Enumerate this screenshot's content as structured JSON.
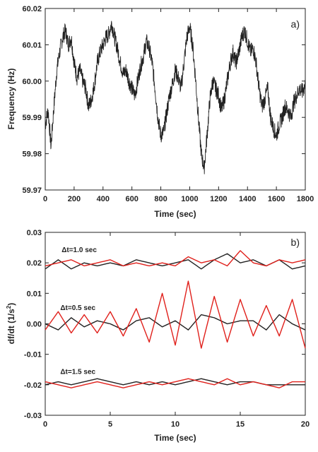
{
  "chart_data": [
    {
      "type": "line",
      "panel_label": "a)",
      "xlabel": "Time (sec)",
      "ylabel": "Frequency (Hz)",
      "xlim": [
        0,
        1800
      ],
      "ylim": [
        59.97,
        60.02
      ],
      "xticks": [
        "0",
        "200",
        "400",
        "600",
        "800",
        "1000",
        "1200",
        "1400",
        "1600",
        "1800"
      ],
      "xtick_values": [
        0,
        200,
        400,
        600,
        800,
        1000,
        1200,
        1400,
        1600,
        1800
      ],
      "yticks": [
        "59.97",
        "59.98",
        "59.99",
        "60.00",
        "60.01",
        "60.02"
      ],
      "ytick_values": [
        59.97,
        59.98,
        59.99,
        60.0,
        60.01,
        60.02
      ],
      "grid": false,
      "series": [
        {
          "color": "#222222",
          "x": [
            0,
            20,
            40,
            60,
            80,
            100,
            120,
            140,
            160,
            180,
            200,
            220,
            240,
            260,
            280,
            300,
            320,
            340,
            360,
            380,
            400,
            420,
            440,
            460,
            480,
            500,
            520,
            540,
            560,
            580,
            600,
            620,
            640,
            660,
            680,
            700,
            720,
            740,
            760,
            780,
            800,
            820,
            840,
            860,
            880,
            900,
            920,
            940,
            960,
            980,
            1000,
            1020,
            1040,
            1060,
            1080,
            1100,
            1120,
            1140,
            1160,
            1180,
            1200,
            1220,
            1240,
            1260,
            1280,
            1300,
            1320,
            1340,
            1360,
            1380,
            1400,
            1420,
            1440,
            1460,
            1480,
            1500,
            1520,
            1540,
            1560,
            1580,
            1600,
            1620,
            1640,
            1660,
            1680,
            1700,
            1720,
            1740,
            1760,
            1780,
            1800
          ],
          "y": [
            59.988,
            59.992,
            59.982,
            59.993,
            60.003,
            60.008,
            60.012,
            60.014,
            60.01,
            60.012,
            60.005,
            60.001,
            60.003,
            60.0,
            59.998,
            59.993,
            59.995,
            59.999,
            60.005,
            60.008,
            60.01,
            60.012,
            60.013,
            60.016,
            60.012,
            60.009,
            60.005,
            60.002,
            60.003,
            60.0,
            59.998,
            59.996,
            60.0,
            60.004,
            60.007,
            60.011,
            60.009,
            60.005,
            59.998,
            59.99,
            59.985,
            59.986,
            59.991,
            59.996,
            59.999,
            60.003,
            60.001,
            59.998,
            60.005,
            60.012,
            60.015,
            60.01,
            60.001,
            59.99,
            59.98,
            59.976,
            59.985,
            59.995,
            60.0,
            59.998,
            59.996,
            59.992,
            59.995,
            60.0,
            60.005,
            60.008,
            60.005,
            60.008,
            60.012,
            60.014,
            60.011,
            60.008,
            60.009,
            60.005,
            59.998,
            59.993,
            59.995,
            59.998,
            59.99,
            59.987,
            59.985,
            59.988,
            59.99,
            59.993,
            59.992,
            59.99,
            59.994,
            59.996,
            59.998,
            59.997,
            59.999
          ]
        }
      ]
    },
    {
      "type": "line",
      "panel_label": "b)",
      "xlabel": "Time (sec)",
      "ylabel": "df/dt (1/s",
      "ylabel_sup": "2",
      "ylabel_end": ")",
      "xlim": [
        0,
        20
      ],
      "ylim": [
        -0.03,
        0.03
      ],
      "xticks": [
        "0",
        "5",
        "10",
        "15",
        "20"
      ],
      "xtick_values": [
        0,
        5,
        10,
        15,
        20
      ],
      "yticks": [
        "-0.03",
        "-0.02",
        "-0.01",
        "0.00",
        "0.01",
        "0.02",
        "0.03"
      ],
      "ytick_values": [
        -0.03,
        -0.02,
        -0.01,
        0.0,
        0.01,
        0.02,
        0.03
      ],
      "grid": false,
      "annotations": [
        {
          "text": "Δt=1.0 sec",
          "x": 0.5,
          "y": 0.0235
        },
        {
          "text": "Δt=0.5 sec",
          "x": 0.4,
          "y": 0.0045
        },
        {
          "text": "Δt=1.5 sec",
          "x": 0.4,
          "y": -0.0165
        }
      ],
      "series": [
        {
          "color": "#222222",
          "group": "Δt=1.0 sec",
          "x": [
            0,
            1,
            2,
            3,
            4,
            5,
            6,
            7,
            8,
            9,
            10,
            11,
            12,
            13,
            14,
            15,
            16,
            17,
            18,
            19,
            20
          ],
          "y": [
            0.018,
            0.021,
            0.018,
            0.02,
            0.019,
            0.02,
            0.019,
            0.021,
            0.02,
            0.019,
            0.02,
            0.021,
            0.018,
            0.021,
            0.023,
            0.02,
            0.021,
            0.019,
            0.021,
            0.018,
            0.019
          ]
        },
        {
          "color": "#e0201b",
          "group": "Δt=1.0 sec",
          "x": [
            0,
            1,
            2,
            3,
            4,
            5,
            6,
            7,
            8,
            9,
            10,
            11,
            12,
            13,
            14,
            15,
            16,
            17,
            18,
            19,
            20
          ],
          "y": [
            0.019,
            0.02,
            0.021,
            0.019,
            0.02,
            0.021,
            0.019,
            0.02,
            0.019,
            0.02,
            0.019,
            0.022,
            0.02,
            0.021,
            0.019,
            0.024,
            0.02,
            0.019,
            0.021,
            0.02,
            0.021
          ]
        },
        {
          "color": "#222222",
          "group": "Δt=0.5 sec",
          "x": [
            0,
            1,
            2,
            3,
            4,
            5,
            6,
            7,
            8,
            9,
            10,
            11,
            12,
            13,
            14,
            15,
            16,
            17,
            18,
            19,
            20
          ],
          "y": [
            0.0,
            -0.002,
            0.002,
            -0.001,
            0.001,
            0.0,
            -0.002,
            0.001,
            0.002,
            -0.001,
            0.001,
            -0.002,
            0.003,
            0.002,
            0.0,
            0.001,
            0.001,
            -0.002,
            0.003,
            0.0,
            -0.002
          ]
        },
        {
          "color": "#e0201b",
          "group": "Δt=0.5 sec",
          "x": [
            0,
            1,
            2,
            3,
            4,
            5,
            6,
            7,
            8,
            9,
            10,
            11,
            12,
            13,
            14,
            15,
            16,
            17,
            18,
            19,
            20
          ],
          "y": [
            -0.002,
            0.004,
            -0.003,
            0.003,
            -0.003,
            0.004,
            -0.004,
            0.005,
            -0.006,
            0.01,
            -0.007,
            0.014,
            -0.008,
            0.009,
            -0.006,
            0.008,
            -0.004,
            0.006,
            -0.004,
            0.008,
            -0.008
          ]
        },
        {
          "color": "#222222",
          "group": "Δt=1.5 sec",
          "x": [
            0,
            1,
            2,
            3,
            4,
            5,
            6,
            7,
            8,
            9,
            10,
            11,
            12,
            13,
            14,
            15,
            16,
            17,
            18,
            19,
            20
          ],
          "y": [
            -0.02,
            -0.019,
            -0.02,
            -0.019,
            -0.018,
            -0.019,
            -0.02,
            -0.019,
            -0.02,
            -0.019,
            -0.02,
            -0.019,
            -0.018,
            -0.019,
            -0.02,
            -0.019,
            -0.019,
            -0.02,
            -0.02,
            -0.02,
            -0.02
          ]
        },
        {
          "color": "#e0201b",
          "group": "Δt=1.5 sec",
          "x": [
            0,
            1,
            2,
            3,
            4,
            5,
            6,
            7,
            8,
            9,
            10,
            11,
            12,
            13,
            14,
            15,
            16,
            17,
            18,
            19,
            20
          ],
          "y": [
            -0.019,
            -0.02,
            -0.021,
            -0.02,
            -0.019,
            -0.02,
            -0.021,
            -0.02,
            -0.019,
            -0.02,
            -0.019,
            -0.018,
            -0.019,
            -0.02,
            -0.018,
            -0.02,
            -0.019,
            -0.02,
            -0.021,
            -0.019,
            -0.019
          ]
        }
      ]
    }
  ]
}
